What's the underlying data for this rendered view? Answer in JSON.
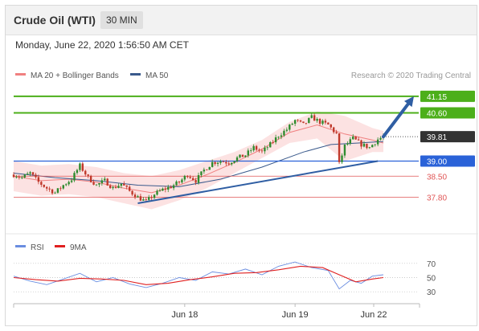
{
  "header": {
    "title": "Crude Oil (WTI)",
    "timeframe": "30 MIN"
  },
  "date_text": "Monday, June 22, 2020 1:56:50 AM CET",
  "legend": {
    "ma20_bb": "MA 20 + Bollinger Bands",
    "ma50": "MA 50",
    "research": "Research © 2020 Trading Central"
  },
  "rsi_legend": {
    "rsi": "RSI",
    "ma9": "9MA"
  },
  "colors": {
    "resistance": "#4caf1a",
    "support_blue": "#2a62d8",
    "support_red": "#e05555",
    "current": "#333333",
    "bull": "#2e8b2e",
    "bear": "#c0392b",
    "band": "#fbd6d6",
    "ma20": "#f08080",
    "ma50": "#3a5a8c",
    "trend": "#2f5ea3",
    "rsi": "#6a8de0",
    "ma9": "#e02020"
  },
  "chart_data": [
    {
      "type": "candlestick",
      "title": "Crude Oil (WTI)",
      "timeframe": "30 MIN",
      "ylim": [
        36.8,
        41.6
      ],
      "x_ticks": [
        "Jun 18",
        "Jun 19",
        "Jun 22"
      ],
      "levels": [
        {
          "label": "41.15",
          "value": 41.15,
          "kind": "resistance"
        },
        {
          "label": "40.60",
          "value": 40.6,
          "kind": "resistance"
        },
        {
          "label": "39.81",
          "value": 39.81,
          "kind": "current"
        },
        {
          "label": "39.00",
          "value": 39.0,
          "kind": "support_blue"
        },
        {
          "label": "38.50",
          "value": 38.5,
          "kind": "support_red"
        },
        {
          "label": "37.80",
          "value": 37.8,
          "kind": "support_red"
        }
      ],
      "price_path": [
        [
          0,
          38.55
        ],
        [
          3,
          38.45
        ],
        [
          6,
          38.6
        ],
        [
          9,
          38.3
        ],
        [
          12,
          38.1
        ],
        [
          15,
          37.95
        ],
        [
          18,
          38.2
        ],
        [
          21,
          38.4
        ],
        [
          24,
          38.85
        ],
        [
          27,
          38.45
        ],
        [
          30,
          38.2
        ],
        [
          33,
          38.35
        ],
        [
          36,
          38.1
        ],
        [
          39,
          38.25
        ],
        [
          42,
          38.0
        ],
        [
          45,
          37.8
        ],
        [
          48,
          37.65
        ],
        [
          51,
          37.9
        ],
        [
          54,
          38.05
        ],
        [
          57,
          38.15
        ],
        [
          60,
          38.3
        ],
        [
          63,
          38.55
        ],
        [
          66,
          38.35
        ],
        [
          69,
          38.7
        ],
        [
          72,
          38.95
        ],
        [
          75,
          39.0
        ],
        [
          78,
          38.95
        ],
        [
          81,
          39.1
        ],
        [
          84,
          39.2
        ],
        [
          87,
          39.45
        ],
        [
          90,
          39.3
        ],
        [
          93,
          39.55
        ],
        [
          96,
          39.85
        ],
        [
          99,
          40.05
        ],
        [
          102,
          40.35
        ],
        [
          105,
          40.2
        ],
        [
          108,
          40.45
        ],
        [
          111,
          40.3
        ],
        [
          114,
          40.2
        ],
        [
          117,
          39.9
        ],
        [
          118,
          38.9
        ],
        [
          120,
          39.5
        ],
        [
          123,
          39.75
        ],
        [
          126,
          39.55
        ],
        [
          129,
          39.45
        ],
        [
          132,
          39.72
        ],
        [
          134,
          39.81
        ]
      ],
      "bands": {
        "x": [
          0,
          10,
          20,
          30,
          40,
          50,
          60,
          70,
          80,
          90,
          100,
          110,
          120,
          130,
          134
        ],
        "upper": [
          39.0,
          38.85,
          38.9,
          38.8,
          38.6,
          38.5,
          38.7,
          39.0,
          39.3,
          39.7,
          40.3,
          40.65,
          40.5,
          40.1,
          40.0
        ],
        "middle": [
          38.5,
          38.35,
          38.4,
          38.3,
          38.1,
          37.95,
          38.2,
          38.55,
          38.95,
          39.4,
          39.95,
          40.2,
          39.9,
          39.7,
          39.6
        ],
        "lower": [
          38.0,
          37.85,
          37.9,
          37.8,
          37.6,
          37.4,
          37.7,
          38.1,
          38.6,
          39.1,
          39.6,
          39.75,
          39.0,
          39.3,
          39.3
        ]
      },
      "ma50": {
        "x": [
          0,
          15,
          30,
          45,
          60,
          75,
          90,
          105,
          115,
          125,
          134
        ],
        "values": [
          38.6,
          38.45,
          38.35,
          38.2,
          38.15,
          38.4,
          38.8,
          39.3,
          39.55,
          39.6,
          39.65
        ]
      },
      "trendline": {
        "from": [
          45,
          37.6
        ],
        "to": [
          132,
          39.0
        ]
      },
      "forecast_arrow": {
        "from": [
          134,
          39.81
        ],
        "to": [
          146,
          41.15
        ]
      }
    },
    {
      "type": "line",
      "title": "RSI",
      "ylim": [
        20,
        80
      ],
      "y_ticks": [
        70,
        50,
        30
      ],
      "series": [
        {
          "name": "RSI",
          "x": [
            0,
            6,
            12,
            18,
            24,
            30,
            36,
            42,
            48,
            54,
            60,
            66,
            72,
            78,
            84,
            90,
            96,
            102,
            108,
            114,
            118,
            122,
            126,
            130,
            134
          ],
          "values": [
            52,
            45,
            40,
            48,
            56,
            44,
            50,
            41,
            36,
            42,
            50,
            46,
            58,
            55,
            62,
            54,
            66,
            72,
            64,
            60,
            34,
            46,
            42,
            52,
            54
          ]
        },
        {
          "name": "9MA",
          "x": [
            0,
            8,
            16,
            24,
            32,
            40,
            48,
            56,
            64,
            72,
            80,
            88,
            96,
            104,
            112,
            118,
            124,
            130,
            134
          ],
          "values": [
            50,
            47,
            45,
            49,
            48,
            46,
            40,
            42,
            47,
            51,
            56,
            57,
            61,
            66,
            64,
            54,
            44,
            48,
            50
          ]
        }
      ]
    }
  ]
}
